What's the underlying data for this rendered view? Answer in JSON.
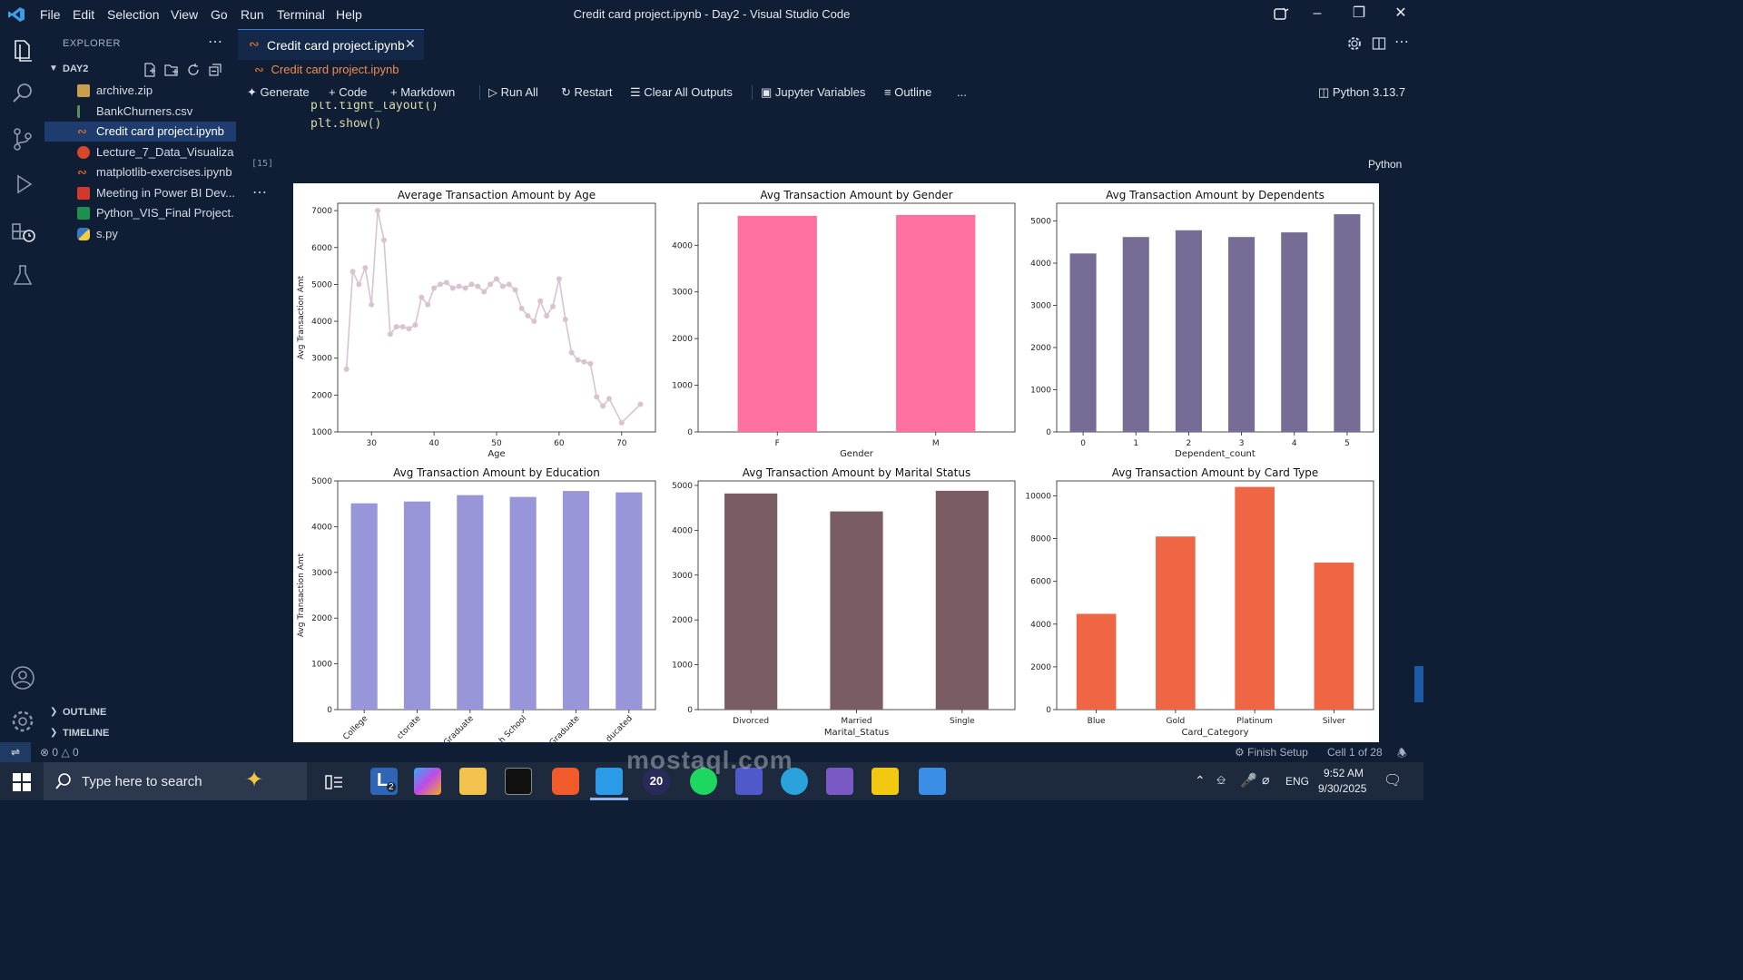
{
  "window": {
    "title": "Credit card project.ipynb - Day2 - Visual Studio Code",
    "menu": [
      "File",
      "Edit",
      "Selection",
      "View",
      "Go",
      "Run",
      "Terminal",
      "Help"
    ]
  },
  "sidebar": {
    "header": "EXPLORER",
    "folder": "DAY2",
    "files": [
      {
        "name": "archive.zip",
        "icon": "zip-icon",
        "color": "#c8a04a"
      },
      {
        "name": "BankChurners.csv",
        "icon": "csv-icon",
        "color": "#5d8d5c"
      },
      {
        "name": "Credit card project.ipynb",
        "icon": "notebook-icon",
        "color": "#f37726",
        "selected": true
      },
      {
        "name": "Lecture_7_Data_Visualiza...",
        "icon": "powerpoint-icon",
        "color": "#d9472b"
      },
      {
        "name": "matplotlib-exercises.ipynb",
        "icon": "notebook-icon",
        "color": "#f37726"
      },
      {
        "name": "Meeting in Power BI Dev...",
        "icon": "pdf-icon",
        "color": "#d0392b"
      },
      {
        "name": "Python_VIS_Final Project...",
        "icon": "excel-icon",
        "color": "#1f8f4e"
      },
      {
        "name": "s.py",
        "icon": "python-icon",
        "color": "#3b78c4"
      }
    ],
    "outline": "OUTLINE",
    "timeline": "TIMELINE"
  },
  "editor": {
    "tab": "Credit card project.ipynb",
    "breadcrumb": "Credit card project.ipynb",
    "toolbar": {
      "generate": "Generate",
      "code": "Code",
      "markdown": "Markdown",
      "run_all": "Run All",
      "restart": "Restart",
      "clear_outputs": "Clear All Outputs",
      "variables": "Jupyter Variables",
      "outline": "Outline",
      "more": "...",
      "kernel": "Python 3.13.7"
    },
    "code_lines": [
      "plt.tight_layout()",
      "plt.show()"
    ],
    "execution_count": "[15]",
    "language": "Python"
  },
  "chart_data": [
    {
      "type": "line",
      "title": "Average Transaction Amount by Age",
      "xlabel": "Age",
      "ylabel": "Avg Transaction Amt",
      "xlim": [
        24.6,
        75.4
      ],
      "ylim": [
        1000,
        7200
      ],
      "xticks": [
        30,
        40,
        50,
        60,
        70
      ],
      "yticks": [
        1000,
        2000,
        3000,
        4000,
        5000,
        6000,
        7000
      ],
      "color": "#d8c4d0",
      "x": [
        26,
        27,
        28,
        29,
        30,
        31,
        32,
        33,
        34,
        35,
        36,
        37,
        38,
        39,
        40,
        41,
        42,
        43,
        44,
        45,
        46,
        47,
        48,
        49,
        50,
        51,
        52,
        53,
        54,
        55,
        56,
        57,
        58,
        59,
        60,
        61,
        62,
        63,
        64,
        65,
        66,
        67,
        68,
        70,
        73
      ],
      "y": [
        2700,
        5350,
        5000,
        5450,
        4450,
        7000,
        6200,
        3650,
        3850,
        3850,
        3800,
        3900,
        4650,
        4450,
        4900,
        5000,
        5050,
        4900,
        4950,
        4900,
        5000,
        4950,
        4800,
        5000,
        5150,
        4950,
        5000,
        4850,
        4350,
        4150,
        4000,
        4550,
        4150,
        4400,
        5150,
        4050,
        3150,
        2950,
        2900,
        2850,
        1950,
        1700,
        1900,
        1250,
        1750
      ]
    },
    {
      "type": "bar",
      "title": "Avg Transaction Amount by Gender",
      "xlabel": "Gender",
      "ylabel": "",
      "ylim": [
        0,
        4900
      ],
      "yticks": [
        0,
        1000,
        2000,
        3000,
        4000
      ],
      "categories": [
        "F",
        "M"
      ],
      "values": [
        4630,
        4650
      ],
      "color": "#ff6f9f"
    },
    {
      "type": "bar",
      "title": "Avg Transaction Amount by Dependents",
      "xlabel": "Dependent_count",
      "ylabel": "",
      "ylim": [
        0,
        5420
      ],
      "yticks": [
        0,
        1000,
        2000,
        3000,
        4000,
        5000
      ],
      "categories": [
        "0",
        "1",
        "2",
        "3",
        "4",
        "5"
      ],
      "values": [
        4230,
        4620,
        4780,
        4620,
        4730,
        5160
      ],
      "color": "#766c96"
    },
    {
      "type": "bar",
      "title": "Avg Transaction Amount by Education",
      "xlabel": "",
      "ylabel": "Avg Transaction Amt",
      "ylim": [
        0,
        5000
      ],
      "yticks": [
        0,
        1000,
        2000,
        3000,
        4000,
        5000
      ],
      "categories": [
        "College",
        "Doctorate",
        "Graduate",
        "High School",
        "Post-Graduate",
        "Uneducated"
      ],
      "tick_labels_visible": [
        "College",
        "ctorate",
        "Graduate",
        "h School",
        "Graduate",
        "ducated"
      ],
      "values": [
        4510,
        4550,
        4690,
        4650,
        4780,
        4750
      ],
      "color": "#9896d8"
    },
    {
      "type": "bar",
      "title": "Avg Transaction Amount by Marital Status",
      "xlabel": "Marital_Status",
      "ylabel": "",
      "ylim": [
        0,
        5100
      ],
      "yticks": [
        0,
        1000,
        2000,
        3000,
        4000,
        5000
      ],
      "categories": [
        "Divorced",
        "Married",
        "Single"
      ],
      "values": [
        4820,
        4420,
        4880
      ],
      "color": "#7a5c64"
    },
    {
      "type": "bar",
      "title": "Avg Transaction Amount by Card Type",
      "xlabel": "Card_Category",
      "ylabel": "",
      "ylim": [
        0,
        10700
      ],
      "yticks": [
        0,
        2000,
        4000,
        6000,
        8000,
        10000
      ],
      "categories": [
        "Blue",
        "Gold",
        "Platinum",
        "Silver"
      ],
      "values": [
        4480,
        8100,
        10420,
        6880
      ],
      "color": "#ef6645"
    }
  ],
  "statusbar": {
    "problems": "0",
    "warnings": "0",
    "finish_setup": "Finish Setup",
    "cell_info": "Cell 1 of 28"
  },
  "taskbar": {
    "search_placeholder": "Type here to search",
    "language": "ENG",
    "time": "9:52 AM",
    "date": "9/30/2025",
    "badge_l": "2",
    "badge_20": "20"
  },
  "watermark": "mostaql.com"
}
